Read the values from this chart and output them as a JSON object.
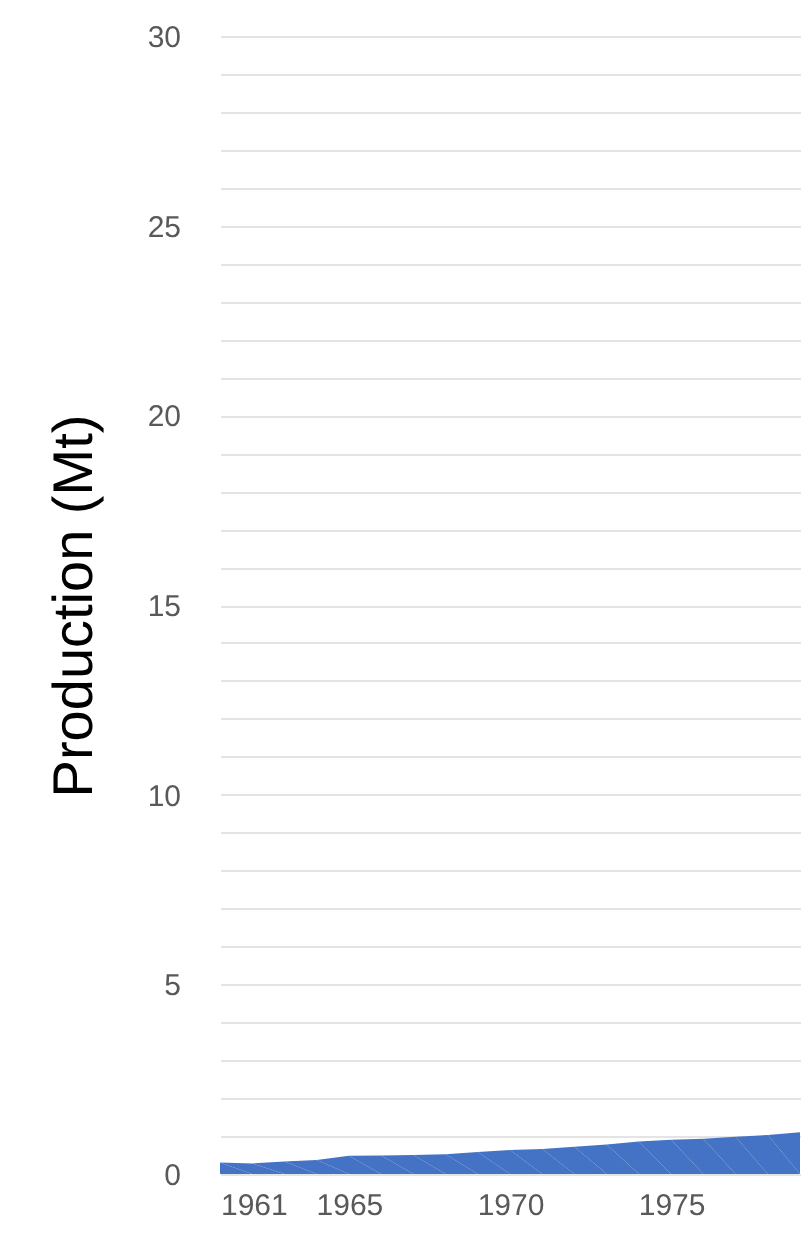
{
  "chart_data": {
    "type": "area",
    "ylabel": "Production (Mt)",
    "x": [
      1961,
      1962,
      1963,
      1964,
      1965,
      1966,
      1967,
      1968,
      1969,
      1970,
      1971,
      1972,
      1973,
      1974,
      1975,
      1976,
      1977,
      1978,
      1979
    ],
    "series": [
      {
        "color": "#4472c4",
        "values": [
          0.3,
          0.28,
          0.33,
          0.37,
          0.48,
          0.49,
          0.5,
          0.52,
          0.58,
          0.63,
          0.66,
          0.72,
          0.78,
          0.86,
          0.9,
          0.93,
          0.98,
          1.03,
          1.1
        ]
      }
    ],
    "xlim": [
      1961,
      1979
    ],
    "xticks": [
      1961,
      1965,
      1970,
      1975
    ],
    "ylim": [
      0,
      30
    ],
    "yticks": [
      0,
      {
        "value": 1,
        "label": null
      },
      {
        "value": 2,
        "label": null
      },
      {
        "value": 3,
        "label": null
      },
      {
        "value": 4,
        "label": null
      },
      5,
      {
        "value": 6,
        "label": null
      },
      {
        "value": 7,
        "label": null
      },
      {
        "value": 8,
        "label": null
      },
      {
        "value": 9,
        "label": null
      },
      10,
      {
        "value": 11,
        "label": null
      },
      {
        "value": 12,
        "label": null
      },
      {
        "value": 13,
        "label": null
      },
      {
        "value": 14,
        "label": null
      },
      15,
      {
        "value": 16,
        "label": null
      },
      {
        "value": 17,
        "label": null
      },
      {
        "value": 18,
        "label": null
      },
      {
        "value": 19,
        "label": null
      },
      20,
      {
        "value": 21,
        "label": null
      },
      {
        "value": 22,
        "label": null
      },
      {
        "value": 23,
        "label": null
      },
      {
        "value": 24,
        "label": null
      },
      25,
      {
        "value": 26,
        "label": null
      },
      {
        "value": 27,
        "label": null
      },
      {
        "value": 28,
        "label": null
      },
      {
        "value": 29,
        "label": null
      },
      30
    ],
    "grid": "y"
  }
}
